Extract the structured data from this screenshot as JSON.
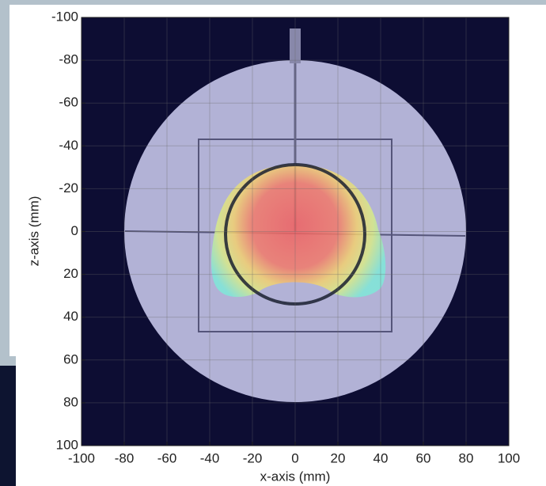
{
  "chart_data": {
    "type": "image",
    "xlabel": "x-axis (mm)",
    "ylabel": "z-axis (mm)",
    "xlim": [
      -100,
      100
    ],
    "ylim": [
      100,
      -100
    ],
    "xticks": [
      -100,
      -80,
      -60,
      -40,
      -20,
      0,
      20,
      40,
      60,
      80,
      100
    ],
    "yticks": [
      -100,
      -80,
      -60,
      -40,
      -20,
      0,
      20,
      40,
      60,
      80,
      100
    ],
    "grid": true
  }
}
